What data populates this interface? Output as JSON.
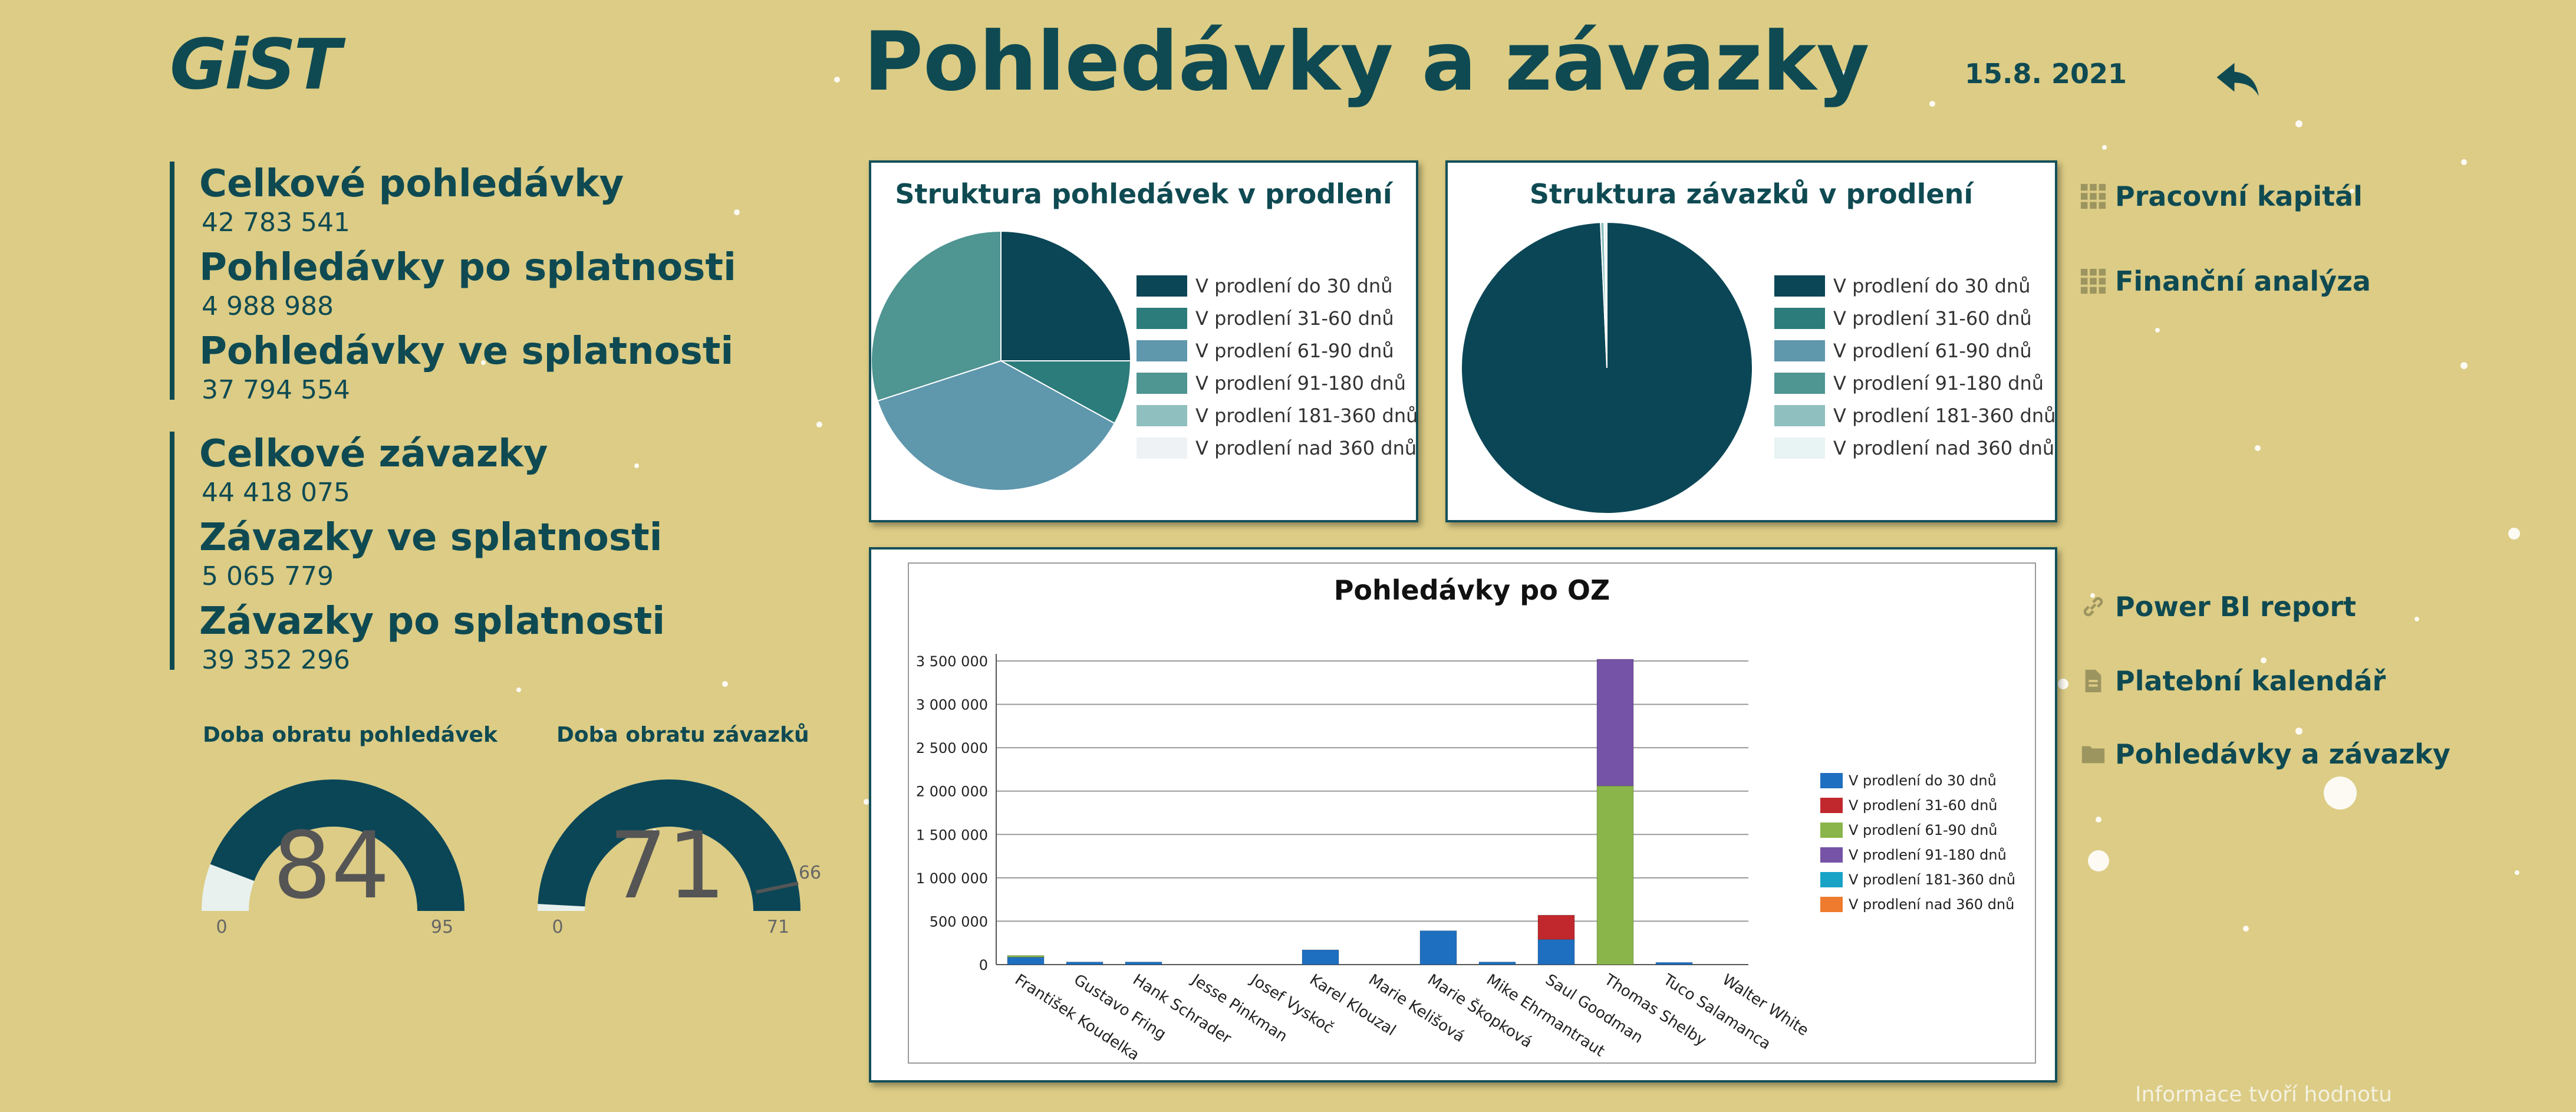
{
  "header": {
    "logo": "GiST",
    "title": "Pohledávky a závazky",
    "date": "15.8. 2021"
  },
  "kpis": {
    "receivables": [
      {
        "label": "Celkové pohledávky",
        "value": "42 783 541"
      },
      {
        "label": "Pohledávky po splatnosti",
        "value": "4 988 988"
      },
      {
        "label": "Pohledávky ve splatnosti",
        "value": "37 794 554"
      }
    ],
    "payables": [
      {
        "label": "Celkové závazky",
        "value": "44 418 075"
      },
      {
        "label": "Závazky ve splatnosti",
        "value": "5 065 779"
      },
      {
        "label": "Závazky po splatnosti",
        "value": "39 352 296"
      }
    ]
  },
  "gauges": [
    {
      "title": "Doba obratu pohledávek",
      "value": 84,
      "min": "0",
      "max": "95",
      "target_label": ""
    },
    {
      "title": "Doba obratu závazků",
      "value": 71,
      "min": "0",
      "max": "71",
      "target_label": "66"
    }
  ],
  "nav": {
    "top": [
      {
        "label": "Pracovní kapitál",
        "icon": "grid-icon"
      },
      {
        "label": "Finanční analýza",
        "icon": "grid-icon"
      }
    ],
    "bottom": [
      {
        "label": "Power BI report",
        "icon": "link-icon"
      },
      {
        "label": "Platební kalendář",
        "icon": "document-icon"
      },
      {
        "label": "Pohledávky a závazky",
        "icon": "folder-icon"
      }
    ]
  },
  "footer": "Informace tvoří hodnotu",
  "colors": {
    "background": "#dccc85",
    "primary": "#0f4a52"
  },
  "chart_data": [
    {
      "type": "pie",
      "title": "Struktura pohledávek v prodlení",
      "labels": [
        "V prodlení do 30 dnů",
        "V prodlení 31-60 dnů",
        "V prodlení 61-90 dnů",
        "V prodlení 91-180 dnů",
        "V prodlení 181-360 dnů",
        "V prodlení  nad 360 dnů"
      ],
      "values": [
        25,
        8,
        37,
        30,
        0,
        0
      ],
      "colors": [
        "#0b4656",
        "#2b7c7b",
        "#5f97ad",
        "#4f9592",
        "#8fc0bf",
        "#eef2f4"
      ],
      "legend": "right"
    },
    {
      "type": "pie",
      "title": "Struktura závazků v prodlení",
      "labels": [
        "V prodlení do 30 dnů",
        "V prodlení 31-60 dnů",
        "V prodlení 61-90 dnů",
        "V prodlení 91-180 dnů",
        "V prodlení 181-360 dnů",
        "V prodlení  nad 360 dnů"
      ],
      "values": [
        99.3,
        0,
        0,
        0,
        0.4,
        0.3
      ],
      "colors": [
        "#0b4656",
        "#2b7c7b",
        "#5f97ad",
        "#4f9592",
        "#8fc0bf",
        "#e8f3f3"
      ],
      "legend": "right"
    },
    {
      "type": "bar",
      "stacked": true,
      "title": "Pohledávky po OZ",
      "categories": [
        "František Koudelka",
        "Gustavo Fring",
        "Hank Schrader",
        "Jesse Pinkman",
        "Josef Vyskoč",
        "Karel Klouzal",
        "Marie Kelišová",
        "Marie Škopková",
        "Mike Ehrmantraut",
        "Saul Goodman",
        "Thomas Shelby",
        "Tuco Salamanca",
        "Walter White"
      ],
      "series": [
        {
          "name": "V prodlení do 30 dnů",
          "color": "#1f6fc0",
          "values": [
            90000,
            30000,
            30000,
            0,
            0,
            170000,
            0,
            390000,
            30000,
            290000,
            0,
            25000,
            0
          ]
        },
        {
          "name": "V prodlení 31-60 dnů",
          "color": "#c0282d",
          "values": [
            0,
            0,
            0,
            0,
            0,
            0,
            0,
            0,
            0,
            280000,
            0,
            0,
            0
          ]
        },
        {
          "name": "V prodlení 61-90 dnů",
          "color": "#8ab54a",
          "values": [
            15000,
            0,
            0,
            0,
            0,
            0,
            0,
            0,
            0,
            0,
            2060000,
            0,
            0
          ]
        },
        {
          "name": "V prodlení 91-180 dnů",
          "color": "#7553a6",
          "values": [
            0,
            0,
            0,
            0,
            0,
            0,
            0,
            0,
            0,
            0,
            1460000,
            0,
            0
          ]
        },
        {
          "name": "V prodlení 181-360 dnů",
          "color": "#17a2c6",
          "values": [
            0,
            0,
            0,
            0,
            0,
            0,
            0,
            0,
            0,
            0,
            0,
            0,
            0
          ]
        },
        {
          "name": "V prodlení  nad 360 dnů",
          "color": "#ee7b2e",
          "values": [
            0,
            0,
            0,
            0,
            0,
            0,
            0,
            0,
            0,
            0,
            0,
            0,
            0
          ]
        }
      ],
      "yticks": [
        "0",
        "500 000",
        "1 000 000",
        "1 500 000",
        "2 000 000",
        "2 500 000",
        "3 000 000",
        "3 500 000"
      ],
      "ylim": [
        0,
        3500000
      ],
      "grid": true,
      "legend": "right"
    }
  ]
}
